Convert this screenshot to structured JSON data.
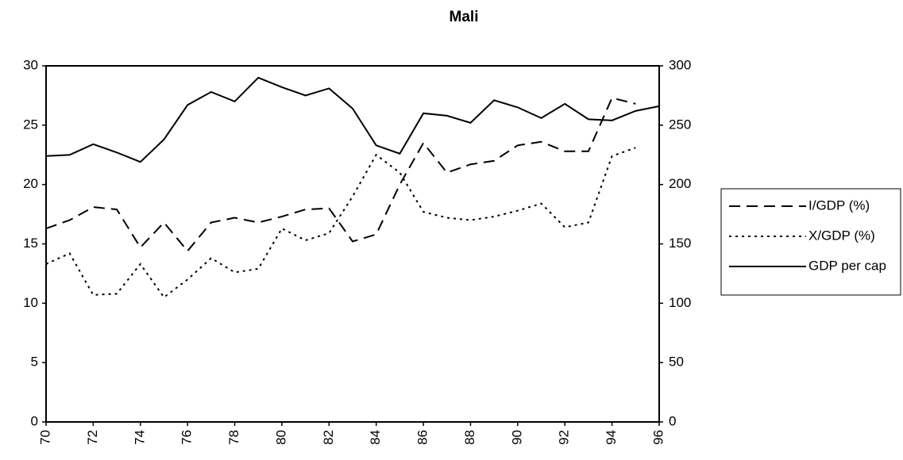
{
  "chart_data": {
    "type": "line",
    "title": "Mali",
    "x": [
      70,
      71,
      72,
      73,
      74,
      75,
      76,
      77,
      78,
      79,
      80,
      81,
      82,
      83,
      84,
      85,
      86,
      87,
      88,
      89,
      90,
      91,
      92,
      93,
      94,
      95,
      96
    ],
    "xlim": [
      70,
      96
    ],
    "xticks": [
      70,
      72,
      74,
      76,
      78,
      80,
      82,
      84,
      86,
      88,
      90,
      92,
      94,
      96
    ],
    "ylim": [
      0,
      30
    ],
    "yticks": [
      0,
      5,
      10,
      15,
      20,
      25,
      30
    ],
    "y2lim": [
      0,
      300
    ],
    "y2ticks": [
      0,
      50,
      100,
      150,
      200,
      250,
      300
    ],
    "legend": "right",
    "series": [
      {
        "name": "I/GDP (%)",
        "color": "#000000",
        "style": "dashed",
        "values": [
          16.3,
          17.0,
          18.1,
          17.9,
          14.7,
          16.8,
          14.4,
          16.8,
          17.2,
          16.8,
          17.3,
          17.9,
          18.0,
          15.2,
          15.8,
          20.0,
          23.5,
          21.0,
          21.7,
          22.0,
          23.3,
          23.6,
          22.8,
          22.8,
          27.3,
          26.8,
          null
        ]
      },
      {
        "name": "X/GDP (%)",
        "color": "#000000",
        "style": "dotted",
        "values": [
          13.3,
          14.2,
          10.7,
          10.8,
          13.3,
          10.5,
          12.0,
          13.8,
          12.6,
          12.9,
          16.3,
          15.3,
          15.9,
          19.0,
          22.5,
          21.0,
          17.7,
          17.2,
          17.0,
          17.3,
          17.8,
          18.4,
          16.4,
          16.8,
          22.4,
          23.1,
          null
        ]
      },
      {
        "name": "GDP per cap",
        "color": "#000000",
        "style": "solid",
        "axis": "y2",
        "values": [
          224,
          225,
          234,
          227,
          219,
          238,
          267,
          278,
          270,
          290,
          282,
          275,
          281,
          264,
          233,
          226,
          260,
          258,
          252,
          271,
          265,
          256,
          268,
          255,
          254,
          262,
          266
        ]
      }
    ]
  }
}
